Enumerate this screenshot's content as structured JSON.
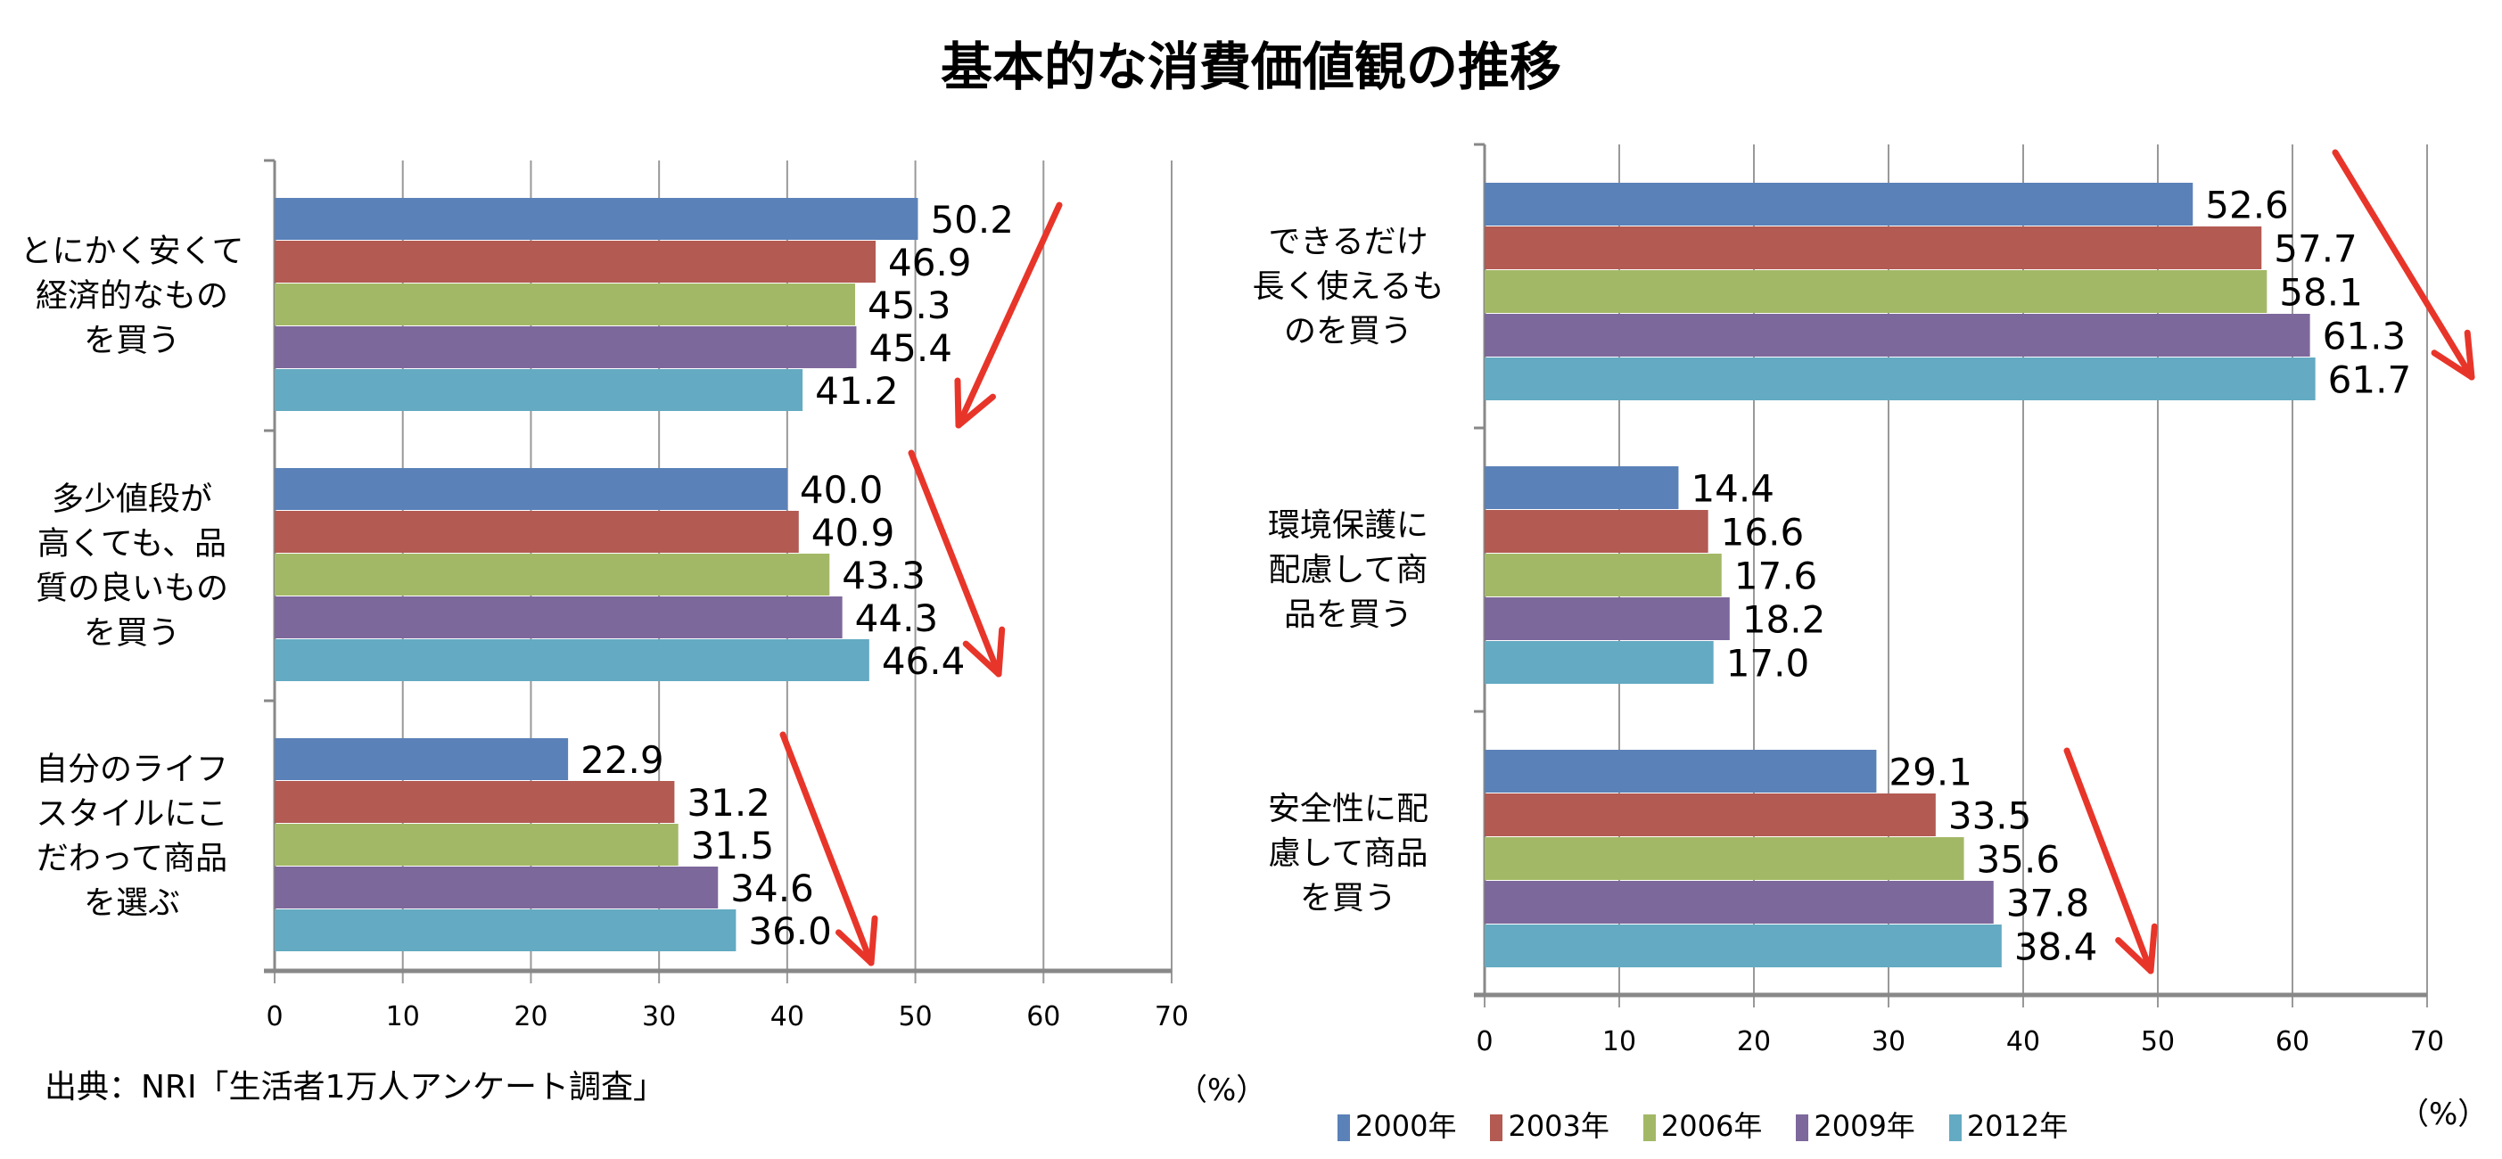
{
  "title": "基本的な消費価値観の推移",
  "source": "出典：NRI「生活者1万人アンケート調査」",
  "colors": {
    "2000年": "#5a81b8",
    "2003年": "#b35a52",
    "2006年": "#a3b866",
    "2009年": "#7d689c",
    "2012年": "#63aac2",
    "arrow": "#e8352a",
    "grid": "#999999"
  },
  "chart_data": [
    {
      "type": "bar",
      "orientation": "horizontal",
      "xlim": [
        0,
        70
      ],
      "xticks": [
        "0",
        "10",
        "20",
        "30",
        "40",
        "50",
        "60",
        "70"
      ],
      "xlabel": "（%）",
      "grid": true,
      "categories": [
        "とにかく安くて\n経済的なもの\nを買う",
        "多少値段が\n高くても、品\n質の良いもの\nを買う",
        "自分のライフ\nスタイルにこ\nだわって商品\nを選ぶ"
      ],
      "series": [
        {
          "name": "2000年",
          "values": [
            50.2,
            40.0,
            22.9
          ]
        },
        {
          "name": "2003年",
          "values": [
            46.9,
            40.9,
            31.2
          ]
        },
        {
          "name": "2006年",
          "values": [
            45.3,
            43.3,
            31.5
          ]
        },
        {
          "name": "2009年",
          "values": [
            45.4,
            44.3,
            34.6
          ]
        },
        {
          "name": "2012年",
          "values": [
            41.2,
            46.4,
            36.0
          ]
        }
      ],
      "labels": [
        [
          "50.2",
          "46.9",
          "45.3",
          "45.4",
          "41.2"
        ],
        [
          "40.0",
          "40.9",
          "43.3",
          "44.3",
          "46.4"
        ],
        [
          "22.9",
          "31.2",
          "31.5",
          "34.6",
          "36.0"
        ]
      ]
    },
    {
      "type": "bar",
      "orientation": "horizontal",
      "xlim": [
        0,
        70
      ],
      "xticks": [
        "0",
        "10",
        "20",
        "30",
        "40",
        "50",
        "60",
        "70"
      ],
      "xlabel": "（%）",
      "grid": true,
      "legend": "bottom",
      "categories": [
        "できるだけ\n長く使えるも\nのを買う",
        "環境保護に\n配慮して商\n品を買う",
        "安全性に配\n慮して商品\nを買う"
      ],
      "series": [
        {
          "name": "2000年",
          "values": [
            52.6,
            14.4,
            29.1
          ]
        },
        {
          "name": "2003年",
          "values": [
            57.7,
            16.6,
            33.5
          ]
        },
        {
          "name": "2006年",
          "values": [
            58.1,
            17.6,
            35.6
          ]
        },
        {
          "name": "2009年",
          "values": [
            61.3,
            18.2,
            37.8
          ]
        },
        {
          "name": "2012年",
          "values": [
            61.7,
            17.0,
            38.4
          ]
        }
      ],
      "labels": [
        [
          "52.6",
          "57.7",
          "58.1",
          "61.3",
          "61.7"
        ],
        [
          "14.4",
          "16.6",
          "17.6",
          "18.2",
          "17.0"
        ],
        [
          "29.1",
          "33.5",
          "35.6",
          "37.8",
          "38.4"
        ]
      ]
    }
  ]
}
